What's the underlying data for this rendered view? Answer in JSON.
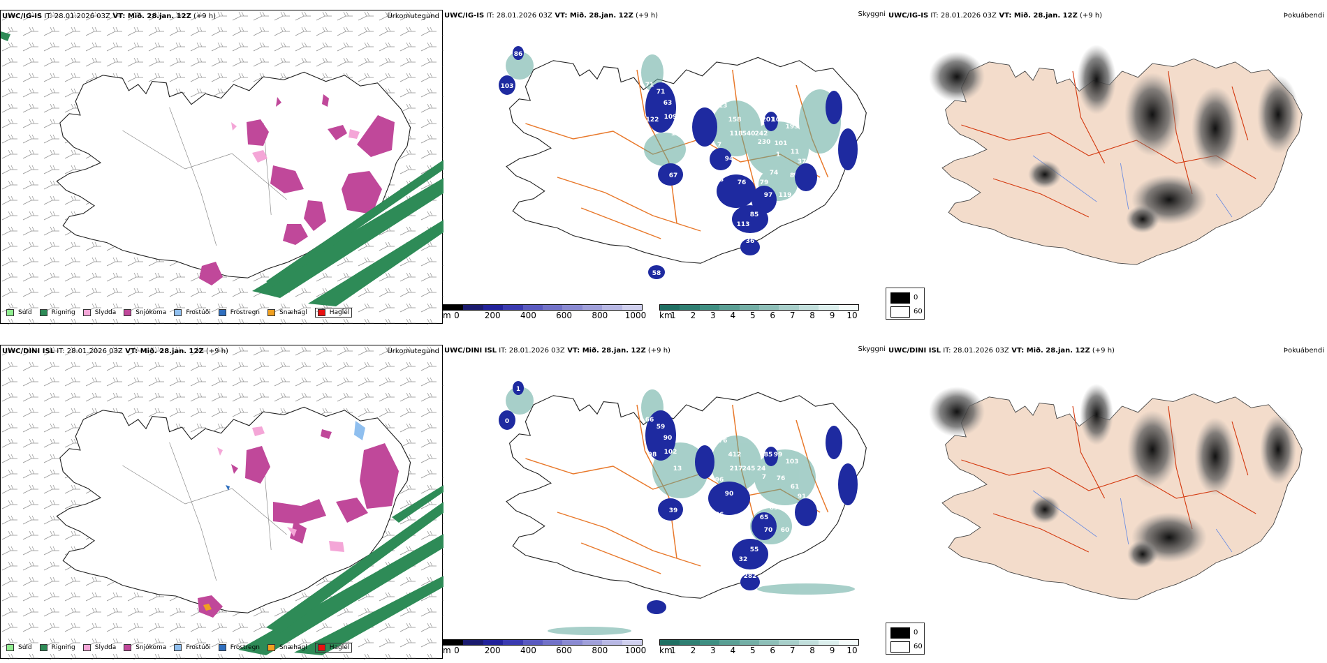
{
  "rows": [
    {
      "precip": {
        "model": "UWC/IG-IS",
        "it_label": " IT: ",
        "it_value": "28.01.2026 03Z",
        "vt_label": " VT: ",
        "vt_value": "Mið. 28.jan. 12Z",
        "lead": " (+9 h)",
        "param": "Úrkomutegund"
      },
      "cloud": {
        "model": "UWC/IG-IS",
        "it_label": " IT: ",
        "it_value": "28.01.2026 03Z",
        "vt_label": " VT: ",
        "vt_value": "Mið. 28.jan. 12Z",
        "lead": " (+9 h)",
        "param": "Skyggni",
        "labels": [
          "86",
          "103",
          "71",
          "71",
          "63",
          "122",
          "109",
          "198",
          "151",
          "247",
          "313",
          "162",
          "158",
          "118",
          "540",
          "242",
          "201",
          "102",
          "193",
          "7",
          "230",
          "101",
          "11",
          "37",
          "94",
          "73",
          "76",
          "79",
          "74",
          "97",
          "119",
          "85",
          "113",
          "36",
          "67",
          "58",
          "1",
          "8",
          "4"
        ]
      },
      "fog": {
        "model": "UWC/IG-IS",
        "it_label": " IT: ",
        "it_value": "28.01.2026 03Z",
        "vt_label": " VT: ",
        "vt_value": "Mið. 28.jan. 12Z",
        "lead": " (+9 h)",
        "param": "Þokuábendi"
      }
    },
    {
      "precip": {
        "model": "UWC/DINI ISL",
        "it_label": " IT: ",
        "it_value": "28.01.2026 03Z",
        "vt_label": " VT: ",
        "vt_value": "Mið. 28.jan. 12Z",
        "lead": " (+9 h)",
        "param": "Úrkomutegund"
      },
      "cloud": {
        "model": "UWC/DINI ISL",
        "it_label": " IT: ",
        "it_value": "28.01.2026 03Z",
        "vt_label": " VT: ",
        "vt_value": "Mið. 28.jan. 12Z",
        "lead": " (+9 h)",
        "param": "Skyggni",
        "labels": [
          "1",
          "0",
          "66",
          "59",
          "90",
          "98",
          "102",
          "13",
          "42",
          "127",
          "176",
          "275",
          "412",
          "217",
          "245",
          "24",
          "85",
          "99",
          "103",
          "96",
          "7",
          "76",
          "61",
          "91",
          "90",
          "66",
          "80",
          "65",
          "89",
          "70",
          "60",
          "55",
          "32",
          "282",
          "39"
        ]
      },
      "fog": {
        "model": "UWC/DINI ISL",
        "it_label": " IT: ",
        "it_value": "28.01.2026 03Z",
        "vt_label": " VT: ",
        "vt_value": "Mið. 28.jan. 12Z",
        "lead": " (+9 h)",
        "param": "Þokuábendi"
      }
    }
  ],
  "precip_legend": [
    {
      "label": "Súld",
      "color": "#90ee90"
    },
    {
      "label": "Rigning",
      "color": "#2e8b57"
    },
    {
      "label": "Slydda",
      "color": "#f4a6d7"
    },
    {
      "label": "Snjókoma",
      "color": "#c0489a"
    },
    {
      "label": "Frostúði",
      "color": "#8fbfef"
    },
    {
      "label": "Frostregn",
      "color": "#2f6fbf"
    },
    {
      "label": "Snæhagl",
      "color": "#f0a020"
    },
    {
      "label": "Haglél",
      "color": "#e81010"
    }
  ],
  "cloudbase_bar": {
    "unit": "m",
    "ticks": [
      "0",
      "200",
      "400",
      "600",
      "800",
      "1000"
    ],
    "colors": [
      "#000000",
      "#1a1a6e",
      "#22229a",
      "#3a3ab0",
      "#5a5ac0",
      "#7272c8",
      "#8a8ad2",
      "#a0a0da",
      "#b8b8e4",
      "#d0d0ee"
    ]
  },
  "visibility_bar": {
    "unit": "km",
    "ticks": [
      "1",
      "2",
      "3",
      "4",
      "5",
      "6",
      "7",
      "8",
      "9",
      "10"
    ],
    "colors": [
      "#1f6f62",
      "#2f7f72",
      "#3f8f82",
      "#5a9f94",
      "#74afa6",
      "#8ebfb8",
      "#a8cfca",
      "#c2dfdc",
      "#dcefed",
      "#f4fbfa"
    ]
  },
  "fog_legend": {
    "high": "0",
    "low": "60"
  },
  "colors": {
    "snow": "#c0489a",
    "rain": "#2e8b57",
    "sleet": "#f4a6d7",
    "cloudbase": "#1e2aa0",
    "visibility": "#5fa89c",
    "roads": "#e8782a",
    "land_fog": "#f3dccb"
  }
}
